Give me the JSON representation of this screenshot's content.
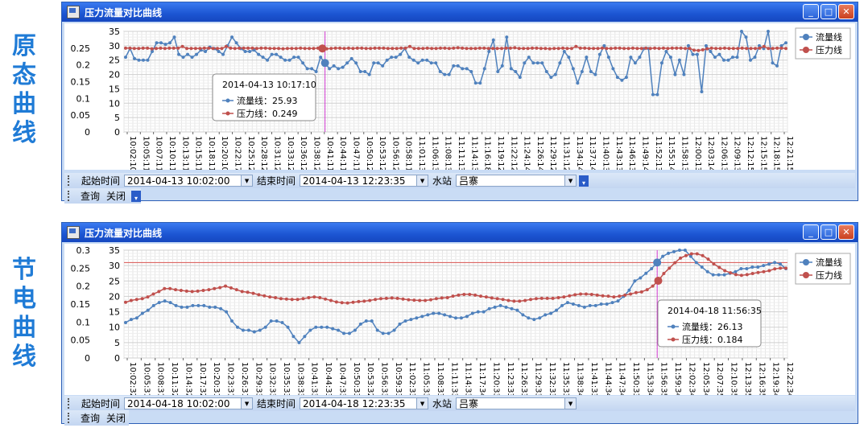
{
  "side_labels": {
    "top": [
      "原",
      "态",
      "曲",
      "线"
    ],
    "bottom": [
      "节",
      "电",
      "曲",
      "线"
    ]
  },
  "colors": {
    "flow": "#4f81bd",
    "pressure": "#c0504d",
    "cursor": "#cc33cc",
    "refline": "#d9534f"
  },
  "window1": {
    "title": "压力流量对比曲线",
    "buttons": {
      "min": "_",
      "max": "□",
      "close": "✕"
    },
    "legend": {
      "flow": "流量线",
      "pressure": "压力线"
    },
    "tooltip": {
      "time": "2014-04-13 10:17:10",
      "flow_label": "流量线：25.93",
      "pressure_label": "压力线：0.249"
    },
    "toolbar": {
      "start_label": "起始时间",
      "start_value": "2014-04-13 10:02:00",
      "end_label": "结束时间",
      "end_value": "2014-04-13 12:23:35",
      "station_label": "水站",
      "station_value": "吕寨",
      "query": "查询",
      "close": "关闭"
    },
    "chart_data": {
      "type": "line",
      "x_ticks": [
        "10:02:10",
        "10:05:11",
        "10:07:11",
        "10:10:11",
        "10:13:11",
        "10:15:11",
        "10:18:11",
        "10:20:10",
        "10:22:17",
        "10:25:12",
        "10:28:12",
        "10:31:12",
        "10:33:12",
        "10:36:12",
        "10:38:12",
        "10:41:11",
        "10:44:11",
        "10:47:11",
        "10:50:12",
        "10:53:12",
        "10:56:12",
        "10:58:11",
        "11:01:13",
        "11:06:13",
        "11:08:13",
        "11:11:13",
        "11:14:13",
        "11:16:18",
        "11:19:12",
        "11:22:12",
        "11:24:14",
        "11:26:14",
        "11:29:12",
        "11:31:12",
        "11:34:14",
        "11:37:14",
        "11:40:13",
        "11:43:13",
        "11:46:13",
        "11:49:14",
        "11:52:13",
        "11:55:14",
        "11:58:13",
        "12:00:13",
        "12:03:14",
        "12:06:13",
        "12:09:13",
        "12:12:15",
        "12:15:15",
        "12:18:15",
        "12:21:15"
      ],
      "left_axis": {
        "ylim": [
          0,
          35
        ],
        "ticks": [
          "35",
          "30",
          "25",
          "20",
          "15",
          "10",
          "5",
          "0"
        ]
      },
      "right_axis": {
        "ylim": [
          0,
          0.3
        ],
        "ticks": [
          "0.25",
          "0.2",
          "0.15",
          "0.1",
          "0.05",
          "0"
        ]
      },
      "cursor_index": 15,
      "series": [
        {
          "name": "流量线",
          "axis": "left",
          "values": [
            26,
            29,
            25.5,
            25,
            25,
            25,
            28,
            31,
            31,
            30.5,
            31,
            33,
            27,
            26,
            27,
            26,
            27,
            28.5,
            28,
            29.5,
            29,
            28,
            27,
            30,
            33,
            31,
            29,
            28,
            28,
            28.5,
            27,
            26,
            25,
            27,
            27,
            26,
            25,
            25,
            26,
            26,
            24,
            22,
            22,
            21,
            26,
            24,
            22,
            23,
            22,
            22.5,
            24,
            25.5,
            24,
            21,
            21,
            20,
            24,
            24,
            23,
            25,
            26,
            26,
            27,
            29,
            26,
            25,
            24,
            25,
            25,
            24,
            24,
            21,
            20,
            20,
            23,
            23,
            22,
            22,
            21,
            17,
            17,
            22,
            28,
            32,
            21,
            23,
            33,
            22,
            21,
            19,
            24,
            26,
            24,
            24,
            24,
            21,
            19,
            20,
            24,
            28,
            26,
            22,
            17,
            21,
            26,
            21,
            20,
            27,
            30,
            26,
            22,
            19,
            18,
            19,
            26,
            24,
            26,
            29,
            29,
            13,
            13,
            24,
            28,
            26,
            20,
            25,
            20,
            30,
            27,
            27,
            14,
            30,
            28,
            26,
            27,
            25,
            25,
            26,
            26,
            35,
            33,
            25,
            26,
            30,
            29,
            35,
            24,
            23,
            30,
            31
          ]
        },
        {
          "name": "压力线",
          "axis": "right",
          "values": [
            0.25,
            0.25,
            0.249,
            0.249,
            0.25,
            0.25,
            0.248,
            0.249,
            0.25,
            0.249,
            0.25,
            0.25,
            0.25,
            0.255,
            0.249,
            0.249,
            0.249,
            0.249,
            0.25,
            0.25,
            0.249,
            0.249,
            0.249,
            0.255,
            0.25,
            0.249,
            0.25,
            0.25,
            0.25,
            0.25,
            0.249,
            0.25,
            0.25,
            0.249,
            0.249,
            0.249,
            0.248,
            0.249,
            0.249,
            0.249,
            0.25,
            0.249,
            0.249,
            0.249,
            0.25,
            0.249,
            0.248,
            0.249,
            0.25,
            0.25,
            0.249,
            0.25,
            0.249,
            0.25,
            0.25,
            0.249,
            0.249,
            0.25,
            0.25,
            0.25,
            0.249,
            0.249,
            0.249,
            0.25,
            0.25,
            0.255,
            0.249,
            0.249,
            0.249,
            0.25,
            0.249,
            0.249,
            0.25,
            0.25,
            0.249,
            0.25,
            0.251,
            0.25,
            0.249,
            0.249,
            0.249,
            0.25,
            0.25,
            0.249,
            0.249,
            0.249,
            0.249,
            0.25,
            0.25,
            0.251,
            0.249,
            0.249,
            0.249,
            0.25,
            0.25,
            0.249,
            0.249,
            0.248,
            0.249,
            0.249,
            0.25,
            0.249,
            0.249,
            0.255,
            0.25,
            0.25,
            0.249,
            0.249,
            0.249,
            0.25,
            0.249,
            0.249,
            0.25,
            0.25,
            0.249,
            0.249,
            0.25,
            0.249,
            0.249,
            0.25,
            0.249,
            0.25,
            0.249,
            0.25,
            0.249,
            0.25,
            0.25,
            0.25,
            0.249,
            0.249,
            0.244,
            0.243,
            0.245,
            0.248,
            0.25,
            0.249,
            0.249,
            0.25,
            0.249,
            0.249,
            0.249,
            0.25,
            0.249,
            0.249,
            0.249,
            0.25,
            0.255,
            0.249,
            0.249,
            0.25,
            0.25,
            0.249
          ]
        }
      ]
    }
  },
  "window2": {
    "title": "压力流量对比曲线",
    "buttons": {
      "min": "_",
      "max": "□",
      "close": "✕"
    },
    "legend": {
      "flow": "流量线",
      "pressure": "压力线"
    },
    "tooltip": {
      "time": "2014-04-18 11:56:35",
      "flow_label": "流量线：26.13",
      "pressure_label": "压力线：0.184"
    },
    "toolbar": {
      "start_label": "起始时间",
      "start_value": "2014-04-18 10:02:00",
      "end_label": "结束时间",
      "end_value": "2014-04-18 12:23:35",
      "station_label": "水站",
      "station_value": "吕寨",
      "query": "查询",
      "close": "关闭"
    },
    "chart_data": {
      "type": "line",
      "x_ticks": [
        "10:02:32",
        "10:05:31",
        "10:08:31",
        "10:11:32",
        "10:14:32",
        "10:17:32",
        "10:20:31",
        "10:23:31",
        "10:26:31",
        "10:29:33",
        "10:32:33",
        "10:35:33",
        "10:38:33",
        "10:41:33",
        "10:44:33",
        "10:47:33",
        "10:50:33",
        "10:53:32",
        "10:56:33",
        "10:59:33",
        "11:02:33",
        "11:05:33",
        "11:08:33",
        "11:11:33",
        "11:14:33",
        "11:17:34",
        "11:20:33",
        "11:23:33",
        "11:26:33",
        "11:29:33",
        "11:32:33",
        "11:35:33",
        "11:38:34",
        "11:41:33",
        "11:44:34",
        "11:47:34",
        "11:50:33",
        "11:53:34",
        "11:56:35",
        "11:59:34",
        "12:02:34",
        "12:05:34",
        "12:07:35",
        "12:10:35",
        "12:13:35",
        "12:16:35",
        "12:19:34",
        "12:22:34"
      ],
      "left_axis": {
        "ylim": [
          0,
          35
        ],
        "ticks": [
          "35",
          "30",
          "25",
          "20",
          "15",
          "10",
          "5",
          "0"
        ]
      },
      "right_axis": {
        "ylim": [
          0,
          0.3
        ],
        "ticks": [
          "0.3",
          "0.25",
          "0.2",
          "0.15",
          "0.1",
          "0.05",
          "0"
        ]
      },
      "reference_line": 31,
      "cursor_index": 38,
      "series": [
        {
          "name": "流量线",
          "axis": "left",
          "values": [
            11.5,
            12.5,
            13,
            14.5,
            15.5,
            17,
            18,
            18.5,
            18,
            17,
            16.5,
            16.5,
            17,
            17,
            17,
            16.5,
            16.5,
            16,
            15,
            12,
            10,
            9,
            9,
            8.5,
            9,
            10,
            12,
            12,
            11.5,
            10,
            7,
            5,
            7,
            9,
            10,
            10,
            10,
            9.5,
            9,
            8,
            8,
            9,
            11,
            12,
            12,
            9,
            8,
            8,
            9,
            11,
            12,
            12.5,
            13,
            13.5,
            14,
            14.5,
            14.5,
            14,
            13.5,
            13,
            13,
            13.5,
            14.5,
            15,
            15,
            16,
            16.5,
            17,
            16.5,
            16,
            15.5,
            14,
            13,
            12.5,
            13,
            14,
            14.5,
            15.5,
            17,
            18,
            17.5,
            17,
            16.5,
            17,
            17,
            17.5,
            17.5,
            18,
            18.5,
            20,
            22,
            25,
            26,
            27.5,
            29,
            31,
            33,
            34,
            34.5,
            35,
            35,
            33,
            31,
            29.5,
            28,
            27,
            27,
            27,
            27.5,
            28,
            29,
            29,
            29.5,
            29.5,
            30,
            30.5,
            31,
            30.5,
            29
          ]
        },
        {
          "name": "压力线",
          "axis": "right",
          "values": [
            0.155,
            0.16,
            0.163,
            0.165,
            0.17,
            0.178,
            0.185,
            0.193,
            0.193,
            0.19,
            0.188,
            0.186,
            0.185,
            0.186,
            0.188,
            0.19,
            0.193,
            0.196,
            0.2,
            0.195,
            0.19,
            0.185,
            0.183,
            0.18,
            0.176,
            0.173,
            0.17,
            0.168,
            0.165,
            0.164,
            0.163,
            0.163,
            0.165,
            0.168,
            0.17,
            0.168,
            0.164,
            0.16,
            0.156,
            0.154,
            0.153,
            0.155,
            0.157,
            0.158,
            0.16,
            0.163,
            0.165,
            0.166,
            0.167,
            0.166,
            0.164,
            0.162,
            0.161,
            0.16,
            0.16,
            0.162,
            0.165,
            0.167,
            0.168,
            0.172,
            0.175,
            0.177,
            0.177,
            0.175,
            0.172,
            0.17,
            0.167,
            0.165,
            0.163,
            0.16,
            0.158,
            0.158,
            0.16,
            0.163,
            0.165,
            0.166,
            0.166,
            0.166,
            0.168,
            0.17,
            0.173,
            0.176,
            0.178,
            0.178,
            0.177,
            0.175,
            0.173,
            0.172,
            0.17,
            0.172,
            0.175,
            0.178,
            0.182,
            0.184,
            0.19,
            0.2,
            0.215,
            0.235,
            0.25,
            0.265,
            0.278,
            0.285,
            0.29,
            0.29,
            0.285,
            0.275,
            0.262,
            0.252,
            0.243,
            0.237,
            0.232,
            0.23,
            0.232,
            0.235,
            0.238,
            0.24,
            0.243,
            0.248,
            0.25,
            0.25
          ]
        }
      ]
    }
  }
}
